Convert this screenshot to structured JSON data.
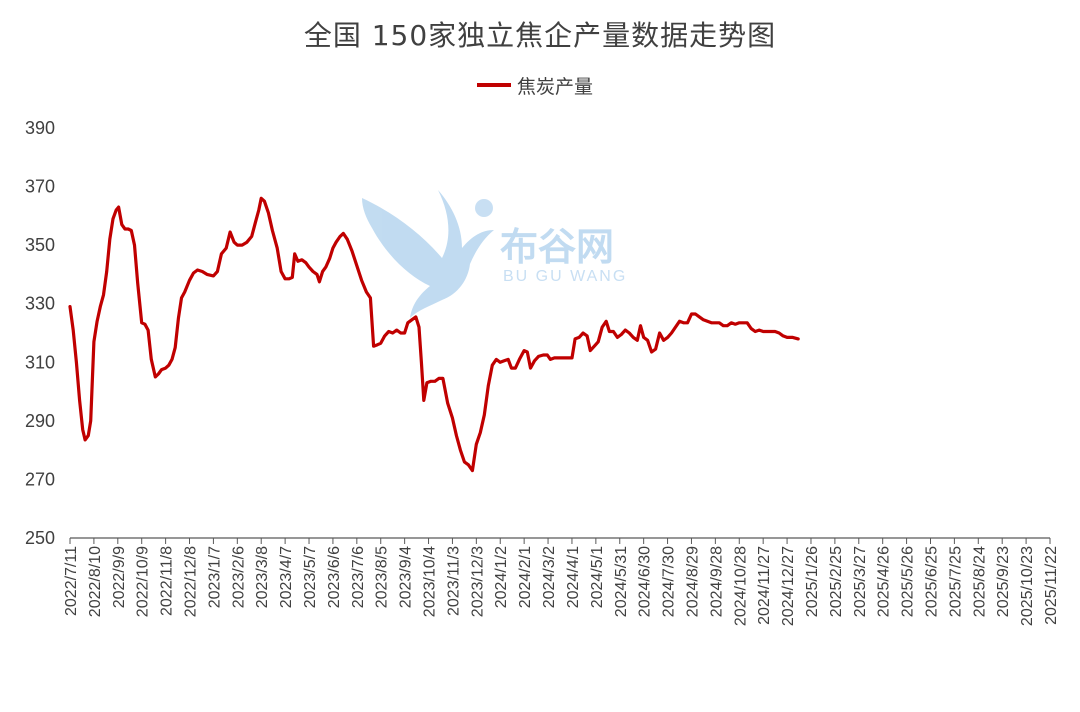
{
  "chart_data": {
    "type": "line",
    "title": "全国 150家独立焦企产量数据走势图",
    "xlabel": "",
    "ylabel": "",
    "ylim": [
      250,
      390
    ],
    "yticks": [
      250,
      270,
      290,
      310,
      330,
      350,
      370,
      390
    ],
    "grid": false,
    "legend_position": "top-center",
    "colors": {
      "series": "#c00000",
      "axis": "#595959",
      "text": "#404040"
    },
    "watermark": {
      "cn": "布谷网",
      "en": "BU GU WANG"
    },
    "x_tick_labels": [
      "2022/7/11",
      "2022/8/10",
      "2022/9/9",
      "2022/10/9",
      "2022/11/8",
      "2022/12/8",
      "2023/1/7",
      "2023/2/6",
      "2023/3/8",
      "2023/4/7",
      "2023/5/7",
      "2023/6/6",
      "2023/7/6",
      "2023/8/5",
      "2023/9/4",
      "2023/10/4",
      "2023/11/3",
      "2023/12/3",
      "2024/1/2",
      "2024/2/1",
      "2024/3/2",
      "2024/4/1",
      "2024/5/1",
      "2024/5/31",
      "2024/6/30",
      "2024/7/30",
      "2024/8/29",
      "2024/9/28",
      "2024/10/28",
      "2024/11/27",
      "2024/12/27",
      "2025/1/26",
      "2025/2/25",
      "2025/3/27",
      "2025/4/26",
      "2025/5/26",
      "2025/6/25",
      "2025/7/25",
      "2025/8/24",
      "2025/9/23",
      "2025/10/23",
      "2025/11/22"
    ],
    "series": [
      {
        "name": "焦炭产量",
        "points": [
          [
            "2022-07-11",
            329
          ],
          [
            "2022-07-15",
            321
          ],
          [
            "2022-07-19",
            310
          ],
          [
            "2022-07-23",
            297
          ],
          [
            "2022-07-27",
            287
          ],
          [
            "2022-07-30",
            283.5
          ],
          [
            "2022-08-03",
            285
          ],
          [
            "2022-08-06",
            290
          ],
          [
            "2022-08-10",
            317
          ],
          [
            "2022-08-14",
            324
          ],
          [
            "2022-08-18",
            329
          ],
          [
            "2022-08-22",
            333
          ],
          [
            "2022-08-26",
            341
          ],
          [
            "2022-08-30",
            352
          ],
          [
            "2022-09-03",
            359
          ],
          [
            "2022-09-07",
            362
          ],
          [
            "2022-09-10",
            363
          ],
          [
            "2022-09-14",
            357
          ],
          [
            "2022-09-18",
            355.5
          ],
          [
            "2022-09-22",
            355.5
          ],
          [
            "2022-09-26",
            355
          ],
          [
            "2022-09-30",
            350
          ],
          [
            "2022-10-04",
            337
          ],
          [
            "2022-10-09",
            323.5
          ],
          [
            "2022-10-13",
            323
          ],
          [
            "2022-10-17",
            321
          ],
          [
            "2022-10-21",
            311
          ],
          [
            "2022-10-26",
            305
          ],
          [
            "2022-10-30",
            306
          ],
          [
            "2022-11-03",
            307.5
          ],
          [
            "2022-11-08",
            308
          ],
          [
            "2022-11-12",
            309
          ],
          [
            "2022-11-16",
            311
          ],
          [
            "2022-11-20",
            315
          ],
          [
            "2022-11-24",
            325
          ],
          [
            "2022-11-28",
            332
          ],
          [
            "2022-12-02",
            334
          ],
          [
            "2022-12-08",
            338
          ],
          [
            "2022-12-13",
            340.5
          ],
          [
            "2022-12-18",
            341.5
          ],
          [
            "2022-12-24",
            341
          ],
          [
            "2022-12-30",
            340
          ],
          [
            "2023-01-07",
            339.5
          ],
          [
            "2023-01-12",
            341
          ],
          [
            "2023-01-17",
            347
          ],
          [
            "2023-01-23",
            349
          ],
          [
            "2023-01-28",
            354.5
          ],
          [
            "2023-02-02",
            351
          ],
          [
            "2023-02-06",
            350
          ],
          [
            "2023-02-12",
            350
          ],
          [
            "2023-02-18",
            351
          ],
          [
            "2023-02-24",
            353
          ],
          [
            "2023-03-01",
            358
          ],
          [
            "2023-03-05",
            362
          ],
          [
            "2023-03-08",
            366
          ],
          [
            "2023-03-12",
            365
          ],
          [
            "2023-03-17",
            361
          ],
          [
            "2023-03-22",
            355
          ],
          [
            "2023-03-28",
            349
          ],
          [
            "2023-04-02",
            341
          ],
          [
            "2023-04-07",
            338.5
          ],
          [
            "2023-04-12",
            338.5
          ],
          [
            "2023-04-16",
            339
          ],
          [
            "2023-04-19",
            347
          ],
          [
            "2023-04-23",
            344.5
          ],
          [
            "2023-04-28",
            345
          ],
          [
            "2023-05-03",
            344
          ],
          [
            "2023-05-07",
            342.5
          ],
          [
            "2023-05-12",
            341
          ],
          [
            "2023-05-17",
            340
          ],
          [
            "2023-05-20",
            337.5
          ],
          [
            "2023-05-24",
            341
          ],
          [
            "2023-05-28",
            342.5
          ],
          [
            "2023-06-02",
            345.5
          ],
          [
            "2023-06-06",
            349
          ],
          [
            "2023-06-10",
            351
          ],
          [
            "2023-06-15",
            353
          ],
          [
            "2023-06-19",
            354
          ],
          [
            "2023-06-24",
            352
          ],
          [
            "2023-06-30",
            348
          ],
          [
            "2023-07-06",
            343
          ],
          [
            "2023-07-12",
            338
          ],
          [
            "2023-07-18",
            334
          ],
          [
            "2023-07-23",
            332
          ],
          [
            "2023-07-27",
            315.5
          ],
          [
            "2023-08-01",
            316
          ],
          [
            "2023-08-05",
            316.5
          ],
          [
            "2023-08-10",
            319
          ],
          [
            "2023-08-15",
            320.5
          ],
          [
            "2023-08-20",
            320
          ],
          [
            "2023-08-25",
            321
          ],
          [
            "2023-08-30",
            320
          ],
          [
            "2023-09-04",
            320
          ],
          [
            "2023-09-08",
            323.5
          ],
          [
            "2023-09-13",
            324.5
          ],
          [
            "2023-09-18",
            325.5
          ],
          [
            "2023-09-22",
            322
          ],
          [
            "2023-09-25",
            310
          ],
          [
            "2023-09-28",
            297
          ],
          [
            "2023-10-02",
            303
          ],
          [
            "2023-10-07",
            303.5
          ],
          [
            "2023-10-12",
            303.5
          ],
          [
            "2023-10-17",
            304.5
          ],
          [
            "2023-10-22",
            304.5
          ],
          [
            "2023-10-28",
            296
          ],
          [
            "2023-11-03",
            291
          ],
          [
            "2023-11-08",
            285
          ],
          [
            "2023-11-13",
            280
          ],
          [
            "2023-11-18",
            276
          ],
          [
            "2023-11-23",
            275
          ],
          [
            "2023-11-28",
            273
          ],
          [
            "2023-12-03",
            282
          ],
          [
            "2023-12-08",
            286
          ],
          [
            "2023-12-13",
            292
          ],
          [
            "2023-12-18",
            302
          ],
          [
            "2023-12-23",
            309
          ],
          [
            "2023-12-28",
            311
          ],
          [
            "2024-01-02",
            310
          ],
          [
            "2024-01-07",
            310.5
          ],
          [
            "2024-01-12",
            311
          ],
          [
            "2024-01-16",
            308
          ],
          [
            "2024-01-21",
            308
          ],
          [
            "2024-01-26",
            311
          ],
          [
            "2024-02-01",
            314
          ],
          [
            "2024-02-05",
            313.5
          ],
          [
            "2024-02-09",
            308
          ],
          [
            "2024-02-14",
            310.5
          ],
          [
            "2024-02-19",
            312
          ],
          [
            "2024-02-25",
            312.5
          ],
          [
            "2024-03-01",
            312.5
          ],
          [
            "2024-03-05",
            311
          ],
          [
            "2024-03-10",
            311.5
          ],
          [
            "2024-03-16",
            311.5
          ],
          [
            "2024-03-22",
            311.5
          ],
          [
            "2024-03-28",
            311.5
          ],
          [
            "2024-04-01",
            311.5
          ],
          [
            "2024-04-05",
            318
          ],
          [
            "2024-04-10",
            318.5
          ],
          [
            "2024-04-15",
            320
          ],
          [
            "2024-04-20",
            319
          ],
          [
            "2024-04-24",
            314
          ],
          [
            "2024-04-29",
            315.5
          ],
          [
            "2024-05-04",
            317
          ],
          [
            "2024-05-09",
            322
          ],
          [
            "2024-05-14",
            324
          ],
          [
            "2024-05-18",
            320.5
          ],
          [
            "2024-05-23",
            320.5
          ],
          [
            "2024-05-28",
            318.5
          ],
          [
            "2024-06-02",
            319.5
          ],
          [
            "2024-06-07",
            321
          ],
          [
            "2024-06-12",
            320
          ],
          [
            "2024-06-17",
            318.5
          ],
          [
            "2024-06-22",
            317.5
          ],
          [
            "2024-06-26",
            322.5
          ],
          [
            "2024-06-30",
            318.5
          ],
          [
            "2024-07-05",
            317.5
          ],
          [
            "2024-07-10",
            313.5
          ],
          [
            "2024-07-15",
            314.5
          ],
          [
            "2024-07-20",
            320
          ],
          [
            "2024-07-25",
            317.5
          ],
          [
            "2024-07-30",
            318.5
          ],
          [
            "2024-08-04",
            320
          ],
          [
            "2024-08-09",
            322
          ],
          [
            "2024-08-14",
            324
          ],
          [
            "2024-08-19",
            323.5
          ],
          [
            "2024-08-24",
            323.5
          ],
          [
            "2024-08-29",
            326.5
          ],
          [
            "2024-09-03",
            326.5
          ],
          [
            "2024-09-08",
            325.5
          ],
          [
            "2024-09-13",
            324.5
          ],
          [
            "2024-09-18",
            324
          ],
          [
            "2024-09-23",
            323.5
          ],
          [
            "2024-09-28",
            323.5
          ],
          [
            "2024-10-03",
            323.5
          ],
          [
            "2024-10-08",
            322.5
          ],
          [
            "2024-10-13",
            322.5
          ],
          [
            "2024-10-18",
            323.5
          ],
          [
            "2024-10-23",
            323
          ],
          [
            "2024-10-28",
            323.5
          ],
          [
            "2024-11-02",
            323.5
          ],
          [
            "2024-11-07",
            323.5
          ],
          [
            "2024-11-12",
            321.5
          ],
          [
            "2024-11-17",
            320.5
          ],
          [
            "2024-11-22",
            321
          ],
          [
            "2024-11-27",
            320.5
          ],
          [
            "2024-12-02",
            320.5
          ],
          [
            "2024-12-07",
            320.5
          ],
          [
            "2024-12-12",
            320.5
          ],
          [
            "2024-12-17",
            320
          ],
          [
            "2024-12-22",
            319
          ],
          [
            "2024-12-27",
            318.5
          ],
          [
            "2025-01-03",
            318.5
          ],
          [
            "2025-01-10",
            318
          ]
        ]
      }
    ]
  }
}
